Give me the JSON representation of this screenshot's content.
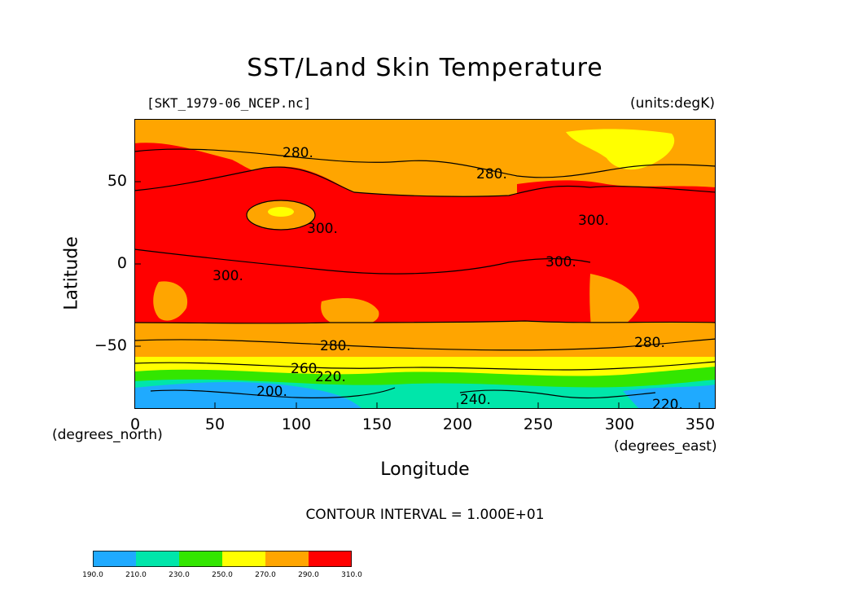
{
  "title": "SST/Land Skin Temperature",
  "file_label": "[SKT_1979-06_NCEP.nc]",
  "units_label": "(units:degK)",
  "y_axis": {
    "label": "Latitude",
    "ticks": [
      "50",
      "0",
      "−50"
    ],
    "note": "(degrees_north)"
  },
  "x_axis": {
    "label": "Longitude",
    "ticks": [
      "0",
      "50",
      "100",
      "150",
      "200",
      "250",
      "300",
      "350"
    ],
    "note": "(degrees_east)"
  },
  "contour_interval": "CONTOUR INTERVAL = 1.000E+01",
  "contour_labels": [
    "280.",
    "280.",
    "300.",
    "300.",
    "300.",
    "300.",
    "280.",
    "280.",
    "260.",
    "220.",
    "240.",
    "200.",
    "220."
  ],
  "colorbar": {
    "colors": [
      "#1faaff",
      "#00e6aa",
      "#33e600",
      "#ffff00",
      "#ffa500",
      "#ff0000"
    ],
    "labels": [
      "190.0",
      "210.0",
      "230.0",
      "250.0",
      "270.0",
      "290.0",
      "310.0"
    ]
  },
  "chart_data": {
    "type": "heatmap",
    "title": "SST/Land Skin Temperature",
    "xlabel": "Longitude",
    "ylabel": "Latitude",
    "xlim": [
      0,
      360
    ],
    "ylim": [
      -90,
      90
    ],
    "x_ticks": [
      0,
      50,
      100,
      150,
      200,
      250,
      300,
      350
    ],
    "y_ticks": [
      -50,
      0,
      50
    ],
    "units": "degK",
    "contour_interval": 10,
    "levels": [
      190,
      210,
      230,
      250,
      270,
      290,
      310
    ]
  }
}
